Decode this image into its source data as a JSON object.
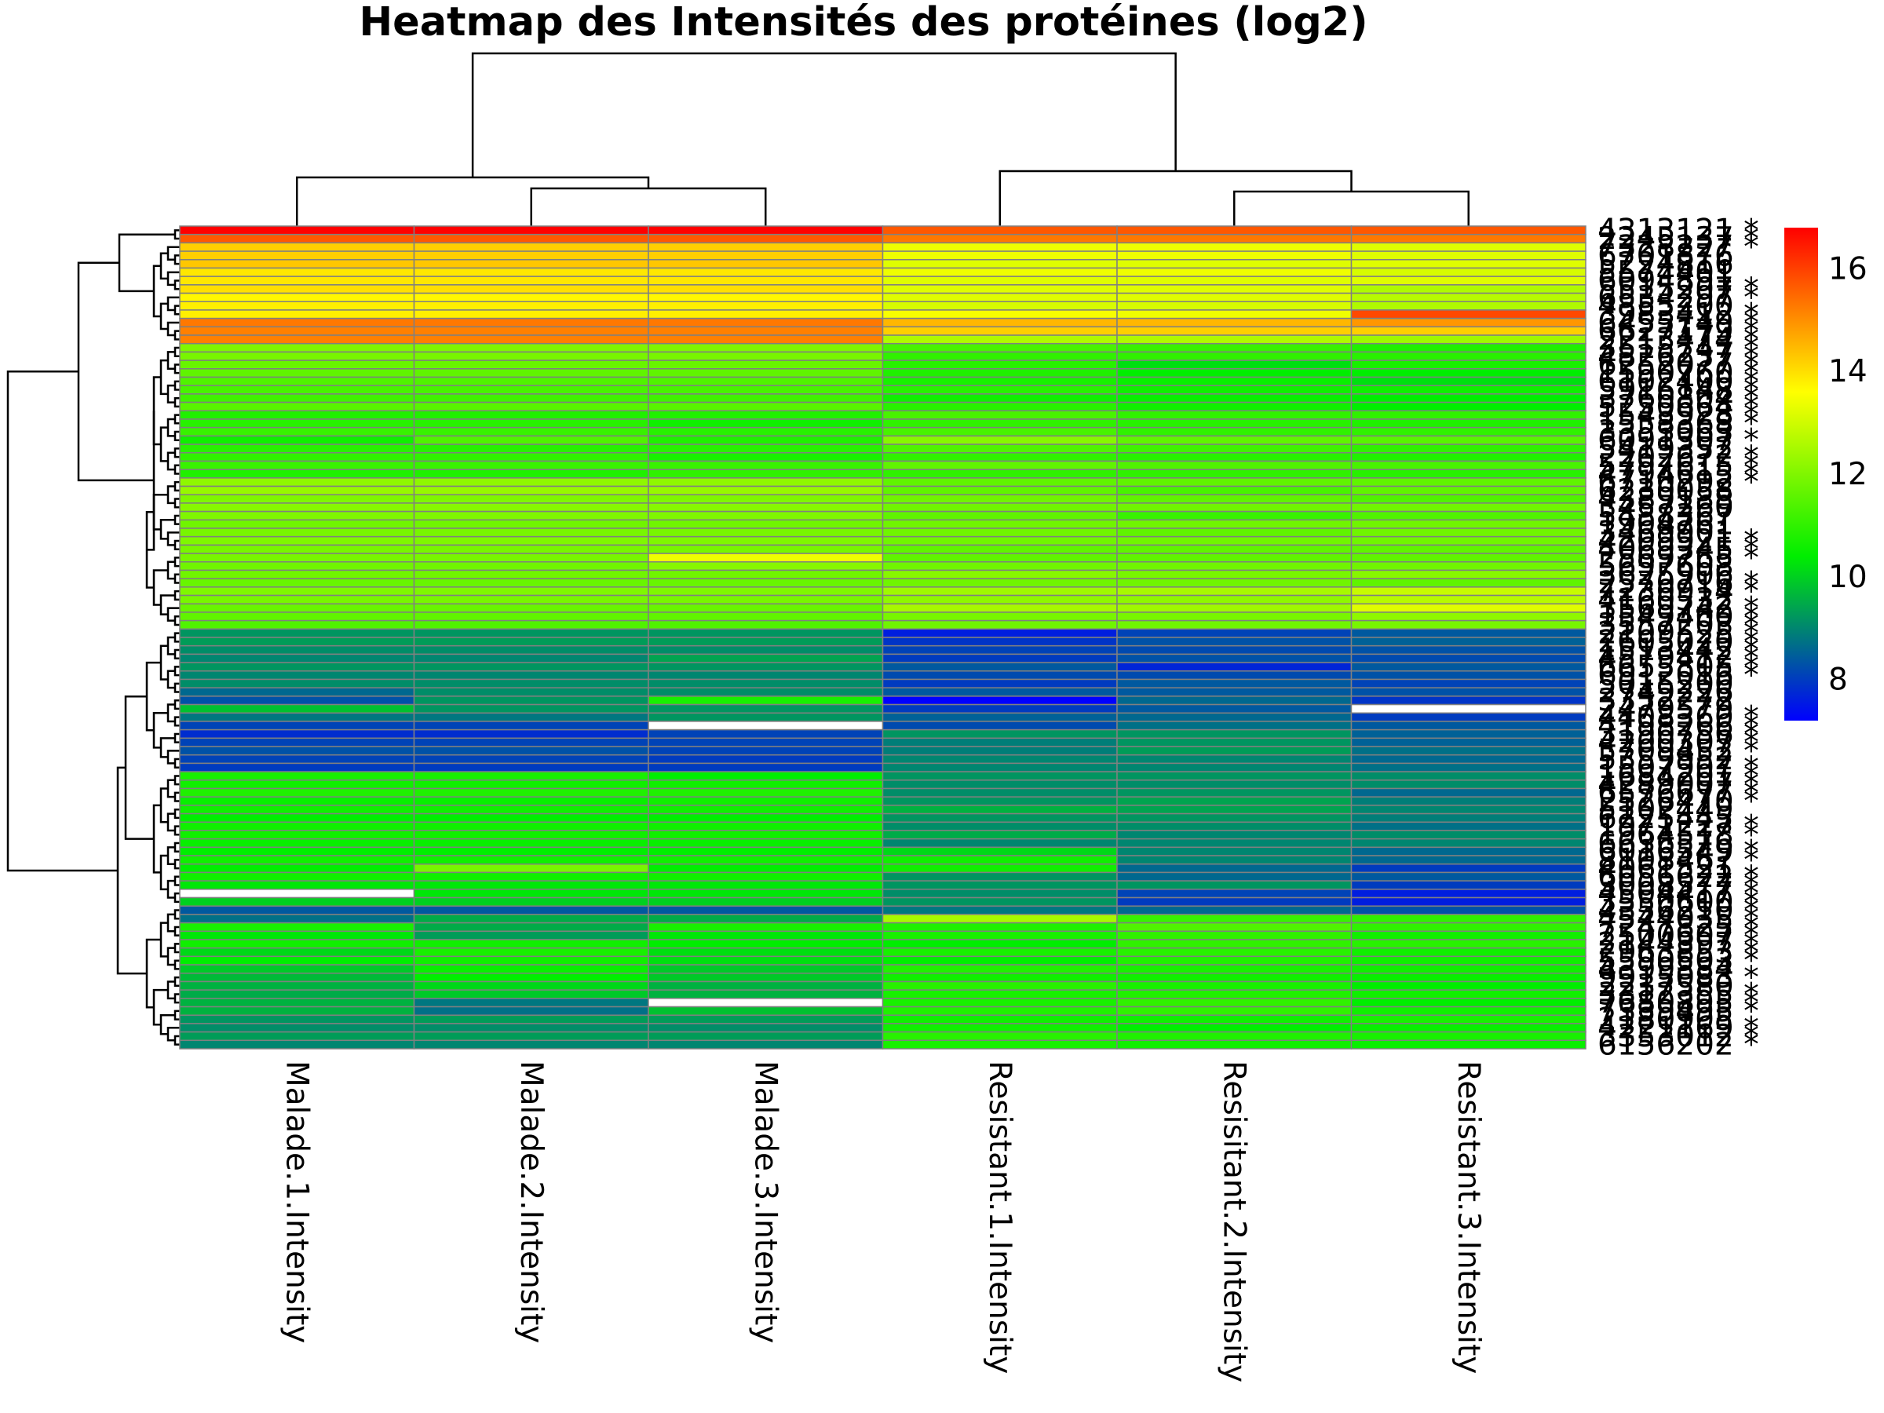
{
  "chart_data": {
    "type": "heatmap",
    "title": "Heatmap des Intensités des protéines (log2)",
    "columns": [
      "Malade.1.Intensity",
      "Malade.2.Intensity",
      "Malade.3.Intensity",
      "Resistant.1.Intensity",
      "Resisitant.2.Intensity",
      "Resistant.3.Intensity"
    ],
    "row_labels": [
      "4313121 *",
      "2245137 *",
      "7328227 *",
      "6701876",
      "5224816",
      "5574401",
      "6094891",
      "5515207 *",
      "6534297 *",
      "4855200",
      "3983412 *",
      "6455749 *",
      "6627179 *",
      "2213474 *",
      "3515747 *",
      "4826237 *",
      "6252077 *",
      "1590760 *",
      "6102400 *",
      "5916148 *",
      "3760804 *",
      "5250664 *",
      "1543928 *",
      "1558368 *",
      "3353063",
      "6091307 *",
      "5419352",
      "2202672 *",
      "5797615 *",
      "4794615 *",
      "6710292 *",
      "6230058",
      "4389188",
      "3457260",
      "5488367",
      "1904761",
      "3469901",
      "4209921 *",
      "4069345 *",
      "2569765 *",
      "5697608",
      "3625906",
      "2570716 *",
      "7230914 *",
      "4160532",
      "3569742 *",
      "1549400 *",
      "3557203 *",
      "2109525 *",
      "2605020 *",
      "1513442 *",
      "4579412 *",
      "6655805 *",
      "6912016 *",
      "5015200",
      "2749226",
      "3352272",
      "2479579",
      "4408360 *",
      "4198266 *",
      "3190756 *",
      "4200307 *",
      "5709452 *",
      "5359952",
      "1507907 *",
      "1684201 *",
      "4289007 *",
      "6576677 *",
      "2526470 *",
      "5102449",
      "6225445",
      "1971227 *",
      "1964518 *",
      "6636576",
      "6016549 *",
      "8108467 *",
      "4061521",
      "6056622 *",
      "3008577 *",
      "4504417 *",
      "3550600 *",
      "4356210 *",
      "4544035 *",
      "7247825 *",
      "2500607 *",
      "2144397 *",
      "2963853 *",
      "5590503 *",
      "4399884",
      "9915083 *",
      "2237580",
      "3312355 *",
      "7680895 *",
      "7339495 *",
      "2180905",
      "4221169 *",
      "3353012 *",
      "6156202 *"
    ],
    "values": [
      [
        16.8,
        16.8,
        16.8,
        15.7,
        15.7,
        15.7
      ],
      [
        15.7,
        15.7,
        15.7,
        15.3,
        15.3,
        15.3
      ],
      [
        14.2,
        14.2,
        14.2,
        13.4,
        13.4,
        13.2
      ],
      [
        14.2,
        14.2,
        14.2,
        13.4,
        13.4,
        13.2
      ],
      [
        14.3,
        14.3,
        14.3,
        13.2,
        13.2,
        13.2
      ],
      [
        13.9,
        13.9,
        13.9,
        13.4,
        13.4,
        13.1
      ],
      [
        13.9,
        13.9,
        13.9,
        13.2,
        13.2,
        13.2
      ],
      [
        14.0,
        14.0,
        14.0,
        13.2,
        13.2,
        12.6
      ],
      [
        13.7,
        13.7,
        13.7,
        13.2,
        13.2,
        12.7
      ],
      [
        13.8,
        13.8,
        13.8,
        13.1,
        13.1,
        12.6
      ],
      [
        13.8,
        13.8,
        13.8,
        13.5,
        13.4,
        15.9
      ],
      [
        15.3,
        15.3,
        15.3,
        14.5,
        14.5,
        14.9
      ],
      [
        15.2,
        15.2,
        15.2,
        14.2,
        14.2,
        14.2
      ],
      [
        15.2,
        15.2,
        15.2,
        12.6,
        12.6,
        12.4
      ],
      [
        12.0,
        12.0,
        12.0,
        11.3,
        11.1,
        10.8
      ],
      [
        11.9,
        11.9,
        11.9,
        11.0,
        11.0,
        10.9
      ],
      [
        11.7,
        11.7,
        11.7,
        10.9,
        10.2,
        10.7
      ],
      [
        11.6,
        11.6,
        11.6,
        10.8,
        10.4,
        10.4
      ],
      [
        11.4,
        11.4,
        11.4,
        10.7,
        10.5,
        10.2
      ],
      [
        11.3,
        11.3,
        11.3,
        10.9,
        10.6,
        10.6
      ],
      [
        11.2,
        11.2,
        11.2,
        10.6,
        10.5,
        10.4
      ],
      [
        11.5,
        11.5,
        11.5,
        10.9,
        10.6,
        10.4
      ],
      [
        10.8,
        10.8,
        10.8,
        11.3,
        11.0,
        11.0
      ],
      [
        10.9,
        10.9,
        10.6,
        11.0,
        10.9,
        10.8
      ],
      [
        11.1,
        11.1,
        10.9,
        11.3,
        11.0,
        11.0
      ],
      [
        10.6,
        11.4,
        10.8,
        12.1,
        11.6,
        11.5
      ],
      [
        10.9,
        10.9,
        10.9,
        11.4,
        11.2,
        11.0
      ],
      [
        11.0,
        11.0,
        10.7,
        11.0,
        10.9,
        10.8
      ],
      [
        11.1,
        11.1,
        11.1,
        11.6,
        11.4,
        11.3
      ],
      [
        10.8,
        10.8,
        11.0,
        11.0,
        11.0,
        10.9
      ],
      [
        12.2,
        12.2,
        12.2,
        11.6,
        11.6,
        11.6
      ],
      [
        12.3,
        12.3,
        12.3,
        11.6,
        11.3,
        11.6
      ],
      [
        12.0,
        12.0,
        12.0,
        11.8,
        11.6,
        11.4
      ],
      [
        12.1,
        12.1,
        12.1,
        11.8,
        11.8,
        11.8
      ],
      [
        12.0,
        12.0,
        12.0,
        11.6,
        11.1,
        11.4
      ],
      [
        11.8,
        11.8,
        11.8,
        11.8,
        11.8,
        11.8
      ],
      [
        11.9,
        11.9,
        11.9,
        11.8,
        11.6,
        11.8
      ],
      [
        12.0,
        12.0,
        12.0,
        11.8,
        11.8,
        11.8
      ],
      [
        11.9,
        11.9,
        11.9,
        11.6,
        11.6,
        11.6
      ],
      [
        11.9,
        11.9,
        13.4,
        11.6,
        11.6,
        11.6
      ],
      [
        11.8,
        11.8,
        12.1,
        11.8,
        11.8,
        11.8
      ],
      [
        11.8,
        11.8,
        11.8,
        12.1,
        11.9,
        12.1
      ],
      [
        11.7,
        11.7,
        11.7,
        11.8,
        11.8,
        11.6
      ],
      [
        12.0,
        12.0,
        12.0,
        12.4,
        12.5,
        12.9
      ],
      [
        11.9,
        11.9,
        11.9,
        12.2,
        12.2,
        12.7
      ],
      [
        11.7,
        11.7,
        11.7,
        12.5,
        12.4,
        13.2
      ],
      [
        11.6,
        11.6,
        11.6,
        11.9,
        11.9,
        12.2
      ],
      [
        11.4,
        11.4,
        11.4,
        11.8,
        11.8,
        11.9
      ],
      [
        9.2,
        9.2,
        9.2,
        7.6,
        8.1,
        8.4
      ],
      [
        9.3,
        9.3,
        9.3,
        7.9,
        8.3,
        8.5
      ],
      [
        9.1,
        9.1,
        9.1,
        8.1,
        8.2,
        8.3
      ],
      [
        9.0,
        9.0,
        9.4,
        8.0,
        8.3,
        8.2
      ],
      [
        9.2,
        9.2,
        9.2,
        8.4,
        7.7,
        8.4
      ],
      [
        9.0,
        9.0,
        9.0,
        8.2,
        8.2,
        8.3
      ],
      [
        9.1,
        9.1,
        9.1,
        8.0,
        8.4,
        8.1
      ],
      [
        8.6,
        9.1,
        9.1,
        8.4,
        8.4,
        8.3
      ],
      [
        8.3,
        9.2,
        10.7,
        7.2,
        8.6,
        7.9
      ],
      [
        9.8,
        9.2,
        9.2,
        8.0,
        8.4,
        null
      ],
      [
        8.8,
        8.8,
        9.2,
        8.5,
        8.6,
        8.0
      ],
      [
        8.1,
        8.1,
        null,
        8.2,
        8.7,
        8.4
      ],
      [
        7.8,
        7.8,
        8.1,
        9.2,
        9.2,
        8.5
      ],
      [
        8.1,
        8.1,
        8.1,
        8.9,
        9.2,
        8.5
      ],
      [
        8.3,
        8.3,
        8.1,
        8.9,
        9.3,
        8.7
      ],
      [
        8.1,
        8.1,
        8.0,
        9.0,
        9.0,
        8.6
      ],
      [
        8.0,
        8.0,
        8.0,
        9.0,
        9.0,
        8.7
      ],
      [
        10.7,
        10.7,
        10.4,
        9.2,
        9.2,
        9.1
      ],
      [
        10.6,
        10.6,
        10.6,
        9.1,
        9.1,
        9.1
      ],
      [
        10.8,
        10.8,
        10.8,
        9.1,
        9.2,
        8.6
      ],
      [
        10.5,
        10.5,
        10.6,
        9.2,
        9.4,
        8.9
      ],
      [
        10.6,
        10.6,
        10.6,
        9.6,
        9.4,
        9.0
      ],
      [
        10.4,
        10.4,
        10.4,
        9.2,
        9.2,
        8.9
      ],
      [
        10.6,
        10.6,
        10.6,
        9.1,
        9.1,
        8.7
      ],
      [
        10.6,
        10.6,
        10.6,
        9.5,
        9.0,
        9.1
      ],
      [
        10.5,
        10.5,
        10.5,
        9.0,
        9.0,
        9.0
      ],
      [
        10.4,
        10.4,
        10.4,
        10.1,
        9.0,
        8.6
      ],
      [
        10.6,
        10.6,
        10.6,
        10.6,
        9.0,
        8.6
      ],
      [
        10.4,
        11.9,
        10.4,
        10.6,
        8.6,
        8.0
      ],
      [
        10.6,
        10.6,
        10.6,
        9.2,
        8.6,
        8.4
      ],
      [
        10.3,
        10.3,
        10.3,
        9.2,
        9.2,
        8.0
      ],
      [
        null,
        10.3,
        10.3,
        9.1,
        8.1,
        7.6
      ],
      [
        10.0,
        10.0,
        10.0,
        9.2,
        8.0,
        7.6
      ],
      [
        8.4,
        8.4,
        8.4,
        8.8,
        8.6,
        8.3
      ],
      [
        8.7,
        9.5,
        9.5,
        12.5,
        11.1,
        11.0
      ],
      [
        10.7,
        9.5,
        10.7,
        10.8,
        11.4,
        11.0
      ],
      [
        10.3,
        9.3,
        10.3,
        10.7,
        11.0,
        10.6
      ],
      [
        10.6,
        10.6,
        10.4,
        10.4,
        11.0,
        10.9
      ],
      [
        10.1,
        10.7,
        10.2,
        10.7,
        10.9,
        10.6
      ],
      [
        10.4,
        10.6,
        10.2,
        10.4,
        10.8,
        10.6
      ],
      [
        9.9,
        10.5,
        9.9,
        10.8,
        10.7,
        10.6
      ],
      [
        9.7,
        10.4,
        9.9,
        10.6,
        10.6,
        10.5
      ],
      [
        9.6,
        10.1,
        9.6,
        10.9,
        10.7,
        10.4
      ],
      [
        9.5,
        9.9,
        9.6,
        10.7,
        10.8,
        10.6
      ],
      [
        9.6,
        8.8,
        null,
        10.7,
        11.0,
        10.4
      ],
      [
        9.6,
        8.7,
        9.8,
        10.8,
        11.0,
        10.6
      ],
      [
        9.2,
        9.3,
        9.3,
        10.6,
        10.6,
        10.7
      ],
      [
        9.1,
        9.1,
        9.1,
        10.6,
        10.4,
        10.5
      ],
      [
        9.3,
        9.3,
        9.3,
        10.9,
        10.8,
        10.7
      ],
      [
        9.0,
        9.0,
        9.0,
        10.7,
        10.6,
        10.5
      ]
    ],
    "colorbar": {
      "ticks": [
        8,
        10,
        12,
        14,
        16
      ],
      "min": 7.2,
      "max": 16.8,
      "colors": [
        "#0000ff",
        "#00ee00",
        "#ffff00",
        "#ff0000"
      ]
    },
    "grid_color": "#808080",
    "missing_color": "#ffffff"
  }
}
